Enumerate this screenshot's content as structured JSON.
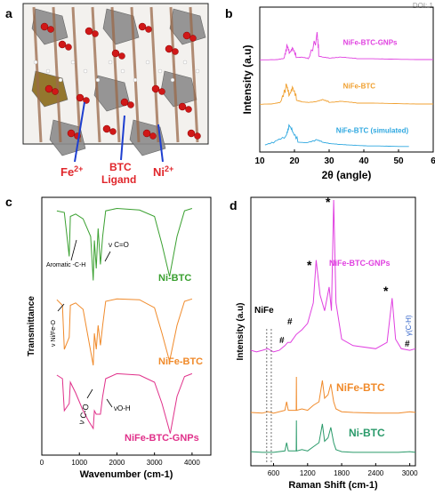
{
  "doi_fragment": "DOI: 1",
  "panels": {
    "a": {
      "letter": "a",
      "labels": [
        {
          "text": "Fe",
          "sup": "2+",
          "color": "#e0262b"
        },
        {
          "text": "BTC",
          "sub": "Ligand",
          "color": "#e0262b"
        },
        {
          "text": "Ni",
          "sup": "2+",
          "color": "#e0262b"
        }
      ]
    },
    "b": {
      "letter": "b"
    },
    "c": {
      "letter": "c"
    },
    "d": {
      "letter": "d"
    }
  },
  "chart_data": [
    {
      "panel": "b",
      "type": "line",
      "xlabel": "2θ (angle)",
      "ylabel": "Intensity (a.u)",
      "xlim": [
        10,
        60
      ],
      "xticks": [
        "10",
        "20",
        "30",
        "40",
        "50",
        "6"
      ],
      "series": [
        {
          "name": "NiFe-BTC-GNPs",
          "color": "#e040e0",
          "x": [
            10,
            15,
            17,
            17.8,
            18.5,
            19.4,
            20.5,
            22,
            24,
            26.5,
            27,
            28,
            30,
            33,
            35,
            38,
            42,
            46,
            50,
            55,
            60
          ],
          "y": [
            0.02,
            0.03,
            0.08,
            0.55,
            0.25,
            0.45,
            0.1,
            0.12,
            0.06,
            1.0,
            0.15,
            0.12,
            0.08,
            0.12,
            0.1,
            0.06,
            0.06,
            0.05,
            0.04,
            0.03,
            0.03
          ]
        },
        {
          "name": "NiFe-BTC",
          "color": "#f0a030",
          "x": [
            10,
            14,
            16,
            17.6,
            18.4,
            19.4,
            20.6,
            22,
            24,
            26.5,
            28,
            30,
            33,
            35,
            38,
            42,
            46,
            50,
            55,
            60
          ],
          "y": [
            0.02,
            0.04,
            0.1,
            0.7,
            0.3,
            0.6,
            0.15,
            0.1,
            0.08,
            0.12,
            0.18,
            0.08,
            0.12,
            0.1,
            0.06,
            0.06,
            0.05,
            0.04,
            0.03,
            0.03
          ]
        },
        {
          "name": "NiFe-BTC (simulated)",
          "color": "#2fa8e0",
          "x": [
            11.5,
            14.5,
            17.6,
            18.4,
            19.4,
            21,
            23.5,
            26.2,
            28,
            30,
            32.5,
            35,
            38,
            41,
            44,
            47,
            50,
            53
          ],
          "y": [
            0.1,
            0.25,
            0.45,
            0.85,
            0.6,
            0.2,
            0.18,
            0.3,
            0.2,
            0.15,
            0.12,
            0.1,
            0.08,
            0.06,
            0.06,
            0.05,
            0.04,
            0.04
          ]
        }
      ]
    },
    {
      "panel": "c",
      "type": "line",
      "xlabel": "Wavenumber (cm-1)",
      "ylabel": "Transmittance",
      "xlim": [
        0,
        4500
      ],
      "xticks": [
        "0",
        "1000",
        "2000",
        "3000",
        "4000"
      ],
      "annotations": [
        "Aromatic -C-H",
        "ν C=O",
        "ν Ni/Fe-O",
        "νO-H",
        "ν C-O"
      ],
      "series": [
        {
          "name": "Ni-BTC",
          "color": "#3aa030",
          "x": [
            400,
            600,
            730,
            760,
            900,
            1100,
            1300,
            1370,
            1400,
            1450,
            1500,
            1560,
            1620,
            1700,
            2000,
            2600,
            3000,
            3200,
            3400,
            3600,
            3800,
            4000
          ],
          "y": [
            0.92,
            0.9,
            0.35,
            0.85,
            0.88,
            0.82,
            0.6,
            0.05,
            0.55,
            0.2,
            0.7,
            0.25,
            0.6,
            0.92,
            0.95,
            0.93,
            0.85,
            0.5,
            0.1,
            0.6,
            0.92,
            0.95
          ]
        },
        {
          "name": "NiFe-BTC",
          "color": "#f08a2a",
          "x": [
            400,
            550,
            600,
            730,
            760,
            900,
            1100,
            1370,
            1400,
            1450,
            1500,
            1560,
            1620,
            1700,
            2000,
            2600,
            3000,
            3200,
            3400,
            3600,
            3800,
            4000
          ],
          "y": [
            0.92,
            0.85,
            0.3,
            0.45,
            0.85,
            0.88,
            0.8,
            0.1,
            0.5,
            0.3,
            0.6,
            0.35,
            0.6,
            0.9,
            0.93,
            0.92,
            0.82,
            0.5,
            0.15,
            0.6,
            0.9,
            0.93
          ]
        },
        {
          "name": "NiFe-BTC-GNPs",
          "color": "#e0308a",
          "x": [
            400,
            550,
            600,
            730,
            760,
            900,
            1100,
            1250,
            1370,
            1400,
            1450,
            1560,
            1620,
            1700,
            2000,
            2600,
            3000,
            3200,
            3420,
            3600,
            3800,
            4000
          ],
          "y": [
            0.9,
            0.85,
            0.4,
            0.5,
            0.8,
            0.65,
            0.4,
            0.25,
            0.15,
            0.4,
            0.35,
            0.35,
            0.6,
            0.85,
            0.92,
            0.9,
            0.8,
            0.5,
            0.08,
            0.6,
            0.88,
            0.92
          ]
        }
      ]
    },
    {
      "panel": "d",
      "type": "line",
      "xlabel": "Raman Shift (cm-1)",
      "ylabel": "Intensity (a.u)",
      "xlim": [
        200,
        3100
      ],
      "xticks": [
        "600",
        "1200",
        "1800",
        "2400",
        "3000"
      ],
      "annotations": [
        "NiFe",
        "#",
        "#",
        "*",
        "*",
        "*",
        "#",
        "γ(C-H)"
      ],
      "series": [
        {
          "name": "NiFe-BTC-GNPs",
          "color": "#e040e0",
          "x": [
            200,
            300,
            400,
            500,
            600,
            700,
            800,
            850,
            900,
            1000,
            1100,
            1200,
            1300,
            1350,
            1420,
            1500,
            1580,
            1620,
            1660,
            1700,
            1800,
            2000,
            2400,
            2600,
            2690,
            2750,
            2850,
            3000,
            3100
          ],
          "y": [
            0.05,
            0.04,
            0.05,
            0.06,
            0.04,
            0.05,
            0.08,
            0.1,
            0.1,
            0.15,
            0.18,
            0.22,
            0.35,
            0.62,
            0.4,
            0.3,
            0.45,
            0.3,
            1.0,
            0.35,
            0.12,
            0.08,
            0.06,
            0.1,
            0.38,
            0.12,
            0.06,
            0.05,
            0.06
          ]
        },
        {
          "name": "NiFe-BTC",
          "color": "#f08a2a",
          "x": [
            200,
            400,
            500,
            600,
            800,
            830,
            860,
            1000,
            1003,
            1006,
            1100,
            1200,
            1300,
            1400,
            1460,
            1500,
            1560,
            1610,
            1660,
            1700,
            1800,
            2000,
            2400,
            2800,
            3000,
            3100
          ],
          "y": [
            0.05,
            0.04,
            0.06,
            0.04,
            0.08,
            0.2,
            0.08,
            0.08,
            0.55,
            0.08,
            0.1,
            0.08,
            0.15,
            0.2,
            0.5,
            0.25,
            0.3,
            0.45,
            0.2,
            0.1,
            0.06,
            0.05,
            0.04,
            0.04,
            0.06,
            0.05
          ]
        },
        {
          "name": "Ni-BTC",
          "color": "#2a9a6a",
          "x": [
            200,
            400,
            600,
            800,
            830,
            860,
            1000,
            1003,
            1006,
            1100,
            1200,
            1300,
            1400,
            1460,
            1500,
            1560,
            1610,
            1660,
            1700,
            1800,
            2000,
            2400,
            2800,
            3000,
            3100
          ],
          "y": [
            0.05,
            0.04,
            0.04,
            0.06,
            0.18,
            0.06,
            0.06,
            0.5,
            0.06,
            0.08,
            0.06,
            0.12,
            0.18,
            0.45,
            0.2,
            0.25,
            0.4,
            0.18,
            0.08,
            0.05,
            0.04,
            0.04,
            0.04,
            0.05,
            0.04
          ]
        }
      ]
    }
  ]
}
